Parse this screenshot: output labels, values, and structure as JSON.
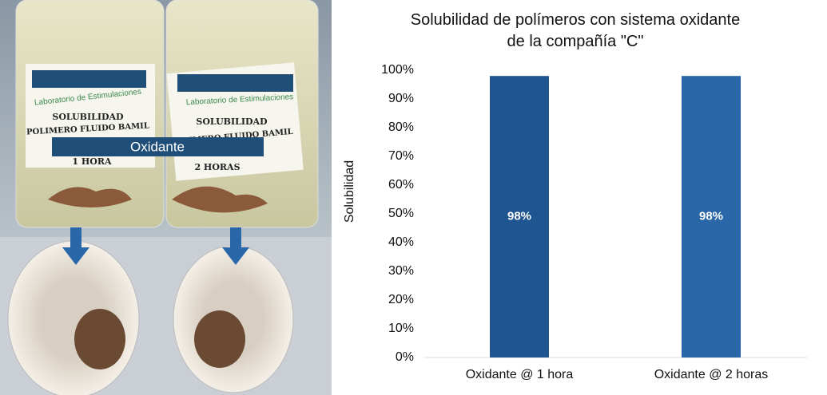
{
  "chart_data": {
    "type": "bar",
    "title": "Solubilidad de polímeros con sistema oxidante de la compañía \"C\"",
    "ylabel": "Solubilidad",
    "categories": [
      "Oxidante @ 1 hora",
      "Oxidante @ 2 horas"
    ],
    "values": [
      98,
      98
    ],
    "value_labels": [
      "98%",
      "98%"
    ],
    "colors": [
      "#1f5590",
      "#2a67a8"
    ],
    "ylim": [
      0,
      100
    ],
    "yticks": [
      {
        "value": 0,
        "label": "0%"
      },
      {
        "value": 10,
        "label": "10%"
      },
      {
        "value": 20,
        "label": "20%"
      },
      {
        "value": 30,
        "label": "30%"
      },
      {
        "value": 40,
        "label": "40%"
      },
      {
        "value": 50,
        "label": "50%"
      },
      {
        "value": 60,
        "label": "60%"
      },
      {
        "value": 70,
        "label": "70%"
      },
      {
        "value": 80,
        "label": "80%"
      },
      {
        "value": 90,
        "label": "90%"
      },
      {
        "value": 100,
        "label": "100%"
      }
    ],
    "grid": false
  },
  "photo": {
    "overlay": "Oxidante",
    "bottles": [
      {
        "lab": "Laboratorio de Estimulaciones",
        "test": "SOLUBILIDAD",
        "fluid": "POLIMERO FLUIDO BAMIL",
        "time": "1 HORA"
      },
      {
        "lab": "Laboratorio de Estimulaciones",
        "test": "SOLUBILIDAD",
        "fluid": "POLIMERO FLUIDO BAMIL",
        "time": "2 HORAS"
      }
    ]
  }
}
